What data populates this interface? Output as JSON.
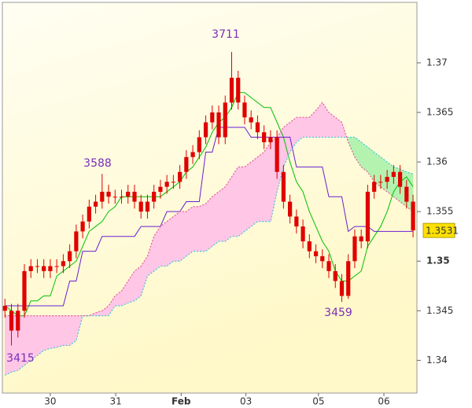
{
  "chart_data": {
    "type": "candlestick",
    "xlim": [
      -0.4,
      63.6
    ],
    "xticks": [
      {
        "value": 7.0,
        "label": "30"
      },
      {
        "value": 17.1,
        "label": "31"
      },
      {
        "value": 27.2,
        "label": "Feb"
      },
      {
        "value": 37.2,
        "label": "03"
      },
      {
        "value": 48.4,
        "label": "05"
      },
      {
        "value": 58.5,
        "label": "06"
      }
    ],
    "ylim": [
      1.3367,
      1.3761
    ],
    "yticks": [
      1.34,
      1.345,
      1.35,
      1.355,
      1.36,
      1.365,
      1.37
    ],
    "grid": false,
    "candle_color": "#e00000",
    "open": [
      1.3455,
      1.345,
      1.343,
      1.345,
      1.349,
      1.3495,
      1.3495,
      1.349,
      1.3495,
      1.3495,
      1.35,
      1.351,
      1.353,
      1.354,
      1.3555,
      1.356,
      1.357,
      1.3565,
      1.3565,
      1.3565,
      1.357,
      1.356,
      1.355,
      1.356,
      1.357,
      1.3575,
      1.358,
      1.358,
      1.359,
      1.3605,
      1.361,
      1.3625,
      1.364,
      1.365,
      1.3625,
      1.366,
      1.3685,
      1.366,
      1.3645,
      1.364,
      1.363,
      1.362,
      1.3625,
      1.359,
      1.356,
      1.3545,
      1.3535,
      1.352,
      1.351,
      1.3505,
      1.35,
      1.349,
      1.348,
      1.3465,
      1.35,
      1.3525,
      1.352,
      1.357,
      1.358,
      1.358,
      1.3585,
      1.359,
      1.3575,
      1.356
    ],
    "high": [
      1.3462,
      1.3457,
      1.3457,
      1.3497,
      1.3502,
      1.3502,
      1.3502,
      1.3502,
      1.3502,
      1.3507,
      1.3517,
      1.3537,
      1.3547,
      1.3562,
      1.3567,
      1.3588,
      1.3577,
      1.3572,
      1.3572,
      1.3577,
      1.3577,
      1.3567,
      1.3567,
      1.3577,
      1.3582,
      1.3587,
      1.3587,
      1.3597,
      1.3612,
      1.3617,
      1.3632,
      1.3647,
      1.3657,
      1.3657,
      1.3667,
      1.3711,
      1.3692,
      1.3667,
      1.3652,
      1.3647,
      1.3637,
      1.3632,
      1.3632,
      1.3597,
      1.3567,
      1.3552,
      1.3542,
      1.3527,
      1.3517,
      1.3512,
      1.3507,
      1.3497,
      1.3487,
      1.3507,
      1.3532,
      1.3532,
      1.3577,
      1.3587,
      1.3587,
      1.3592,
      1.3597,
      1.3597,
      1.3582,
      1.3567
    ],
    "low": [
      1.3443,
      1.3415,
      1.3423,
      1.3443,
      1.3483,
      1.3488,
      1.3483,
      1.3483,
      1.3488,
      1.3488,
      1.3493,
      1.3503,
      1.3523,
      1.3533,
      1.3548,
      1.3553,
      1.3558,
      1.3558,
      1.3558,
      1.3558,
      1.3553,
      1.3543,
      1.3543,
      1.3553,
      1.3563,
      1.3568,
      1.3573,
      1.3573,
      1.3583,
      1.3598,
      1.3603,
      1.3618,
      1.3633,
      1.3618,
      1.3618,
      1.3653,
      1.3653,
      1.3638,
      1.3633,
      1.3623,
      1.3613,
      1.3613,
      1.3583,
      1.3553,
      1.3538,
      1.3528,
      1.3513,
      1.3503,
      1.3498,
      1.3493,
      1.3483,
      1.3473,
      1.3459,
      1.3462,
      1.3493,
      1.3513,
      1.3513,
      1.3563,
      1.3573,
      1.3573,
      1.3578,
      1.3568,
      1.3553,
      1.3524
    ],
    "close": [
      1.345,
      1.343,
      1.345,
      1.349,
      1.3495,
      1.3495,
      1.349,
      1.3495,
      1.3495,
      1.35,
      1.351,
      1.353,
      1.354,
      1.3555,
      1.356,
      1.357,
      1.3565,
      1.3565,
      1.3565,
      1.357,
      1.356,
      1.355,
      1.356,
      1.357,
      1.3575,
      1.358,
      1.358,
      1.359,
      1.3605,
      1.361,
      1.3625,
      1.364,
      1.365,
      1.3625,
      1.366,
      1.3685,
      1.366,
      1.3645,
      1.364,
      1.363,
      1.362,
      1.3625,
      1.359,
      1.356,
      1.3545,
      1.3535,
      1.352,
      1.351,
      1.3505,
      1.35,
      1.349,
      1.348,
      1.3465,
      1.35,
      1.3525,
      1.352,
      1.357,
      1.358,
      1.358,
      1.3585,
      1.359,
      1.3575,
      1.356,
      1.3531
    ],
    "series": [
      {
        "color": "#00c000",
        "values": [
          1.3455,
          1.345,
          1.3445,
          1.3445,
          1.346,
          1.346,
          1.3465,
          1.3465,
          1.3485,
          1.349,
          1.3495,
          1.35,
          1.3515,
          1.353,
          1.3535,
          1.354,
          1.355,
          1.3555,
          1.3565,
          1.3565,
          1.3565,
          1.3565,
          1.3565,
          1.3565,
          1.3565,
          1.357,
          1.3575,
          1.358,
          1.359,
          1.3595,
          1.3605,
          1.3615,
          1.363,
          1.364,
          1.3645,
          1.3655,
          1.367,
          1.367,
          1.3665,
          1.366,
          1.3655,
          1.3655,
          1.364,
          1.3625,
          1.36,
          1.358,
          1.357,
          1.355,
          1.3535,
          1.352,
          1.351,
          1.349,
          1.348,
          1.348,
          1.3485,
          1.349,
          1.3515,
          1.3525,
          1.3535,
          1.355,
          1.357,
          1.358,
          1.3585,
          1.3575
        ]
      },
      {
        "color": "#6a1fd0",
        "values": [
          1.3455,
          1.3455,
          1.3455,
          1.3455,
          1.3455,
          1.3455,
          1.3455,
          1.3455,
          1.3455,
          1.3455,
          1.348,
          1.348,
          1.351,
          1.351,
          1.351,
          1.3525,
          1.3525,
          1.3525,
          1.3525,
          1.3525,
          1.3525,
          1.3535,
          1.3535,
          1.3535,
          1.3535,
          1.355,
          1.355,
          1.355,
          1.356,
          1.356,
          1.356,
          1.361,
          1.361,
          1.3635,
          1.3635,
          1.3635,
          1.3635,
          1.3635,
          1.3625,
          1.3625,
          1.3625,
          1.3625,
          1.3625,
          1.3625,
          1.3625,
          1.3595,
          1.3595,
          1.3595,
          1.3595,
          1.3595,
          1.3565,
          1.3565,
          1.3565,
          1.353,
          1.3535,
          1.3535,
          1.3535,
          1.353,
          1.353,
          1.353,
          1.353,
          1.353,
          1.353,
          1.353
        ]
      },
      {
        "color": "#44c8d8",
        "values": [
          1.3385,
          1.3388,
          1.339,
          1.3395,
          1.34,
          1.3405,
          1.341,
          1.3412,
          1.3413,
          1.3415,
          1.3415,
          1.342,
          1.3445,
          1.3445,
          1.3445,
          1.3445,
          1.3445,
          1.3455,
          1.3455,
          1.3458,
          1.346,
          1.3465,
          1.3485,
          1.349,
          1.3495,
          1.3495,
          1.35,
          1.35,
          1.3505,
          1.351,
          1.351,
          1.351,
          1.3515,
          1.352,
          1.352,
          1.3525,
          1.3525,
          1.353,
          1.3535,
          1.354,
          1.354,
          1.354,
          1.357,
          1.3595,
          1.361,
          1.362,
          1.3625,
          1.3625,
          1.3625,
          1.3625,
          1.3625,
          1.3625,
          1.3625,
          1.3625,
          1.3625,
          1.362,
          1.3615,
          1.361,
          1.3605,
          1.36,
          1.3595,
          1.3593,
          1.359,
          1.3588
        ]
      },
      {
        "color": "#e0609a",
        "values": [
          1.3445,
          1.3445,
          1.3445,
          1.3445,
          1.3445,
          1.3445,
          1.3445,
          1.3445,
          1.3445,
          1.3445,
          1.3445,
          1.3445,
          1.3445,
          1.3445,
          1.3448,
          1.345,
          1.3455,
          1.3465,
          1.347,
          1.348,
          1.349,
          1.3495,
          1.3505,
          1.3525,
          1.3535,
          1.354,
          1.3545,
          1.355,
          1.355,
          1.3555,
          1.3555,
          1.3558,
          1.3565,
          1.357,
          1.3575,
          1.3585,
          1.3595,
          1.3595,
          1.36,
          1.3605,
          1.361,
          1.362,
          1.3625,
          1.3635,
          1.364,
          1.3645,
          1.3645,
          1.3645,
          1.3652,
          1.366,
          1.365,
          1.3645,
          1.364,
          1.362,
          1.3605,
          1.3595,
          1.359,
          1.358,
          1.3575,
          1.357,
          1.3565,
          1.356,
          1.3555,
          1.355
        ]
      }
    ],
    "cloud_up_color": "#b4f2b0",
    "cloud_down_color": "#ffc6e6",
    "annotations": [
      "3711",
      "3588",
      "3415",
      "3459"
    ]
  }
}
